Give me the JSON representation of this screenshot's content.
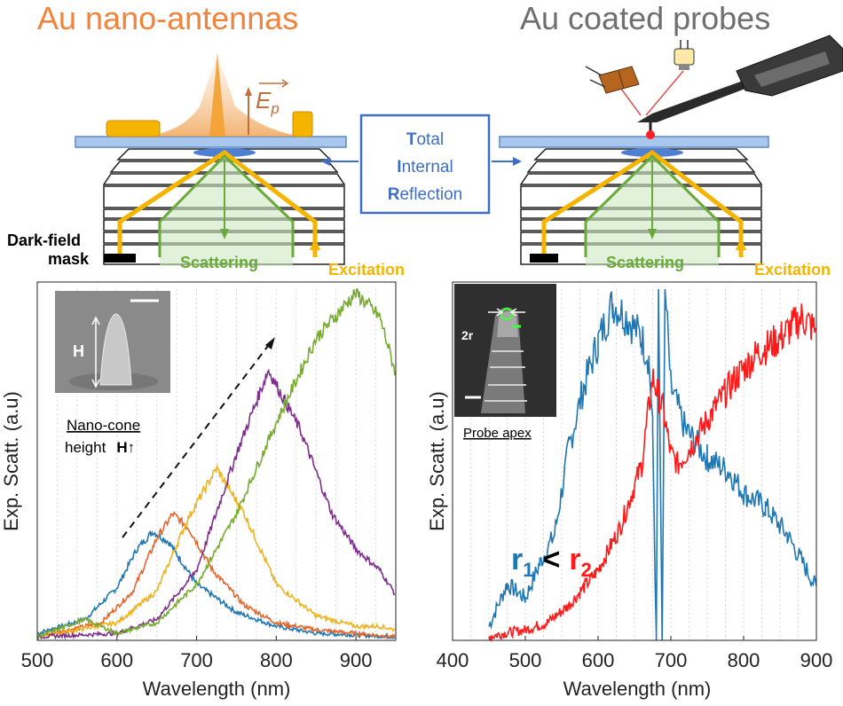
{
  "titles": {
    "left": "Au nano-antennas",
    "right": "Au coated probes"
  },
  "schematic": {
    "tir_line1_bold": "T",
    "tir_line1_rest": "otal",
    "tir_line2_bold": "I",
    "tir_line2_rest": "nternal",
    "tir_line3_bold": "R",
    "tir_line3_rest": "eflection",
    "field_symbol": "E",
    "field_subscript": "p",
    "dark_field_line1": "Dark-field",
    "dark_field_line2": "mask",
    "scattering_left": "Scattering",
    "scattering_right": "Scattering",
    "excitation_left": "Excitation",
    "excitation_right": "Excitation"
  },
  "colors": {
    "orange_title": "#f0843c",
    "gray_title": "#6f6f6f",
    "tir_box": "#3f6fc4",
    "substrate": "#8fb4e3",
    "gold": "#f5b400",
    "green": "#6aaa3a",
    "blue_series": "#1f77b4",
    "red_series": "#ff1a1a"
  },
  "insets": {
    "left": {
      "label_h": "H",
      "caption_line1": "Nano-cone",
      "caption_line2": "height",
      "caption_h": "H",
      "caption_arrow": "↑"
    },
    "right": {
      "label_2r": "2r",
      "caption": "Probe apex",
      "r1_r": "r",
      "r1_sub": "1",
      "lt": "<",
      "r2_r": "r",
      "r2_sub": "2"
    }
  },
  "chart_data": [
    {
      "type": "line",
      "xlabel": "Wavelength (nm)",
      "ylabel": "Exp. Scatt. (a.u)",
      "xlim": [
        500,
        950
      ],
      "ylim": [
        0,
        1
      ],
      "xticks": [
        500,
        600,
        700,
        800,
        900
      ],
      "grid": "vertical dashed",
      "series": [
        {
          "color": "#1f77b4",
          "peak_x": 645,
          "peak_y": 0.31,
          "x": [
            500,
            560,
            600,
            625,
            645,
            665,
            700,
            750,
            800,
            850,
            900,
            950
          ],
          "y": [
            0.02,
            0.06,
            0.15,
            0.26,
            0.31,
            0.28,
            0.16,
            0.08,
            0.04,
            0.02,
            0.015,
            0.01
          ]
        },
        {
          "color": "#e5652a",
          "peak_x": 670,
          "peak_y": 0.36,
          "x": [
            500,
            580,
            620,
            650,
            670,
            690,
            720,
            760,
            800,
            850,
            900,
            950
          ],
          "y": [
            0.01,
            0.05,
            0.14,
            0.29,
            0.36,
            0.32,
            0.2,
            0.1,
            0.05,
            0.03,
            0.02,
            0.01
          ]
        },
        {
          "color": "#f0b21e",
          "peak_x": 725,
          "peak_y": 0.49,
          "x": [
            500,
            600,
            650,
            690,
            725,
            760,
            800,
            850,
            900,
            930,
            950
          ],
          "y": [
            0.01,
            0.05,
            0.14,
            0.35,
            0.49,
            0.36,
            0.16,
            0.07,
            0.04,
            0.04,
            0.03
          ]
        },
        {
          "color": "#7e2f8e",
          "peak_x": 790,
          "peak_y": 0.77,
          "x": [
            500,
            600,
            650,
            700,
            750,
            790,
            830,
            870,
            900,
            930,
            950
          ],
          "y": [
            0.01,
            0.02,
            0.06,
            0.2,
            0.53,
            0.77,
            0.6,
            0.36,
            0.26,
            0.2,
            0.13
          ]
        },
        {
          "color": "#77ac30",
          "peak_x": 900,
          "peak_y": 0.99,
          "x": [
            500,
            560,
            600,
            650,
            700,
            750,
            800,
            850,
            900,
            930,
            950
          ],
          "y": [
            0.01,
            0.06,
            0.02,
            0.05,
            0.16,
            0.36,
            0.62,
            0.86,
            0.99,
            0.92,
            0.76
          ]
        }
      ]
    },
    {
      "type": "line",
      "xlabel": "Wavelength (nm)",
      "ylabel": "Exp. Scatt. (a.u)",
      "xlim": [
        400,
        900
      ],
      "ylim": [
        0,
        1
      ],
      "xticks": [
        400,
        500,
        600,
        700,
        800,
        900
      ],
      "grid": "vertical dashed",
      "series": [
        {
          "color": "#1f77b4",
          "x": [
            450,
            475,
            500,
            520,
            540,
            560,
            580,
            600,
            620,
            640,
            660,
            670,
            675,
            680,
            683,
            688,
            692,
            700,
            720,
            750,
            780,
            800,
            830,
            860,
            900
          ],
          "y": [
            0.04,
            0.16,
            0.12,
            0.22,
            0.3,
            0.55,
            0.72,
            0.85,
            0.96,
            0.92,
            0.86,
            0.8,
            0.6,
            0.0,
            1.0,
            0.0,
            1.0,
            0.72,
            0.6,
            0.52,
            0.48,
            0.42,
            0.38,
            0.3,
            0.15
          ]
        },
        {
          "color": "#ff1a1a",
          "x": [
            450,
            470,
            500,
            530,
            560,
            600,
            630,
            660,
            675,
            690,
            700,
            710,
            730,
            760,
            790,
            820,
            850,
            880,
            900
          ],
          "y": [
            0.01,
            0.02,
            0.03,
            0.05,
            0.1,
            0.2,
            0.32,
            0.5,
            0.75,
            0.65,
            0.53,
            0.5,
            0.56,
            0.66,
            0.75,
            0.82,
            0.86,
            0.92,
            0.88
          ]
        }
      ]
    }
  ]
}
